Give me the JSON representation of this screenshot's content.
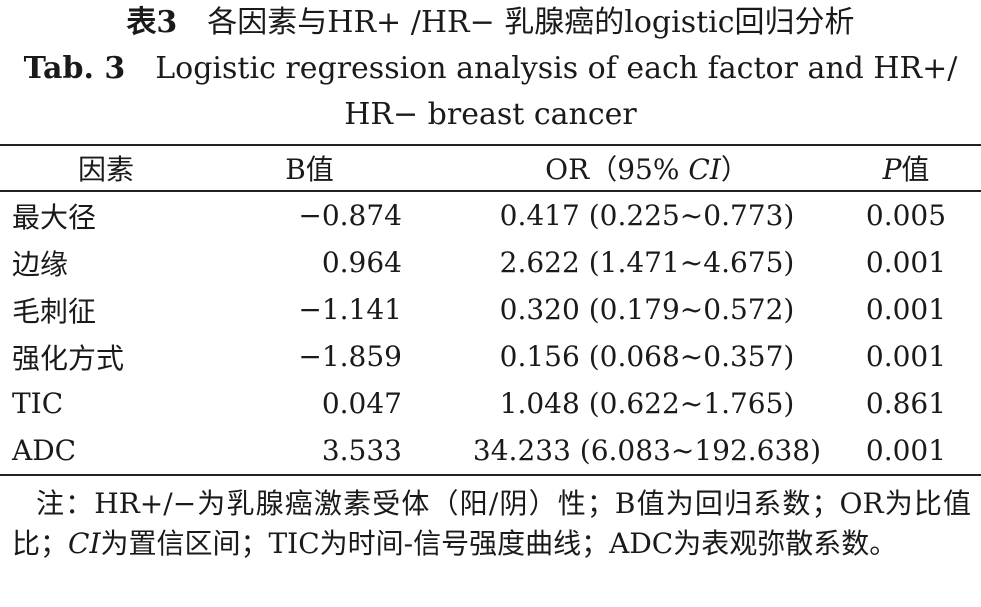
{
  "title_cn": {
    "label": "表3",
    "text": "各因素与HR+ /HR− 乳腺癌的logistic回归分析"
  },
  "title_en": {
    "label": "Tab. 3",
    "lines": [
      "Logistic regression analysis of each factor and HR+/",
      "HR− breast cancer"
    ]
  },
  "table": {
    "header": [
      [
        {
          "text": "因素"
        }
      ],
      [
        {
          "text": "B值"
        }
      ],
      [
        {
          "text": "OR（95% "
        },
        {
          "text": "CI",
          "italic": true
        },
        {
          "text": "）"
        }
      ],
      [
        {
          "text": "P",
          "italic": true
        },
        {
          "text": "值"
        }
      ]
    ],
    "rows": [
      [
        "最大径",
        "−0.874",
        "0.417 (0.225~0.773)",
        "0.005"
      ],
      [
        "边缘",
        "0.964",
        "2.622 (1.471~4.675)",
        "0.001"
      ],
      [
        "毛刺征",
        "−1.141",
        "0.320 (0.179~0.572)",
        "0.001"
      ],
      [
        "强化方式",
        "−1.859",
        "0.156 (0.068~0.357)",
        "0.001"
      ],
      [
        "TIC",
        "0.047",
        "1.048 (0.622~1.765)",
        "0.861"
      ],
      [
        "ADC",
        "3.533",
        "34.233 (6.083~192.638)",
        "0.001"
      ]
    ]
  },
  "note": [
    {
      "text": "注：HR+/−为乳腺癌激素受体（阳/阴）性；B值为回归系数；OR为比值比；"
    },
    {
      "text": "CI",
      "italic": true
    },
    {
      "text": "为置信区间；TIC为时间-信号强度曲线；ADC为表观弥散系数。"
    }
  ]
}
